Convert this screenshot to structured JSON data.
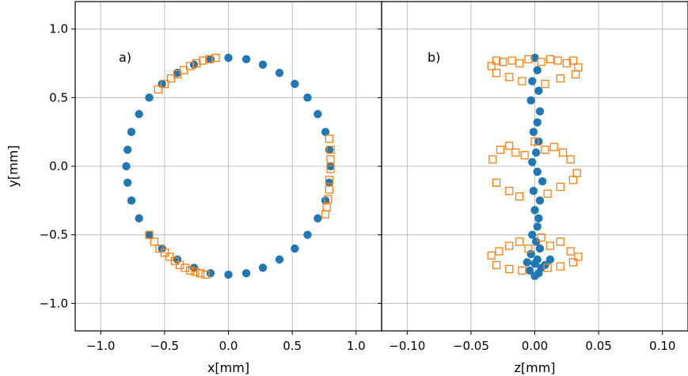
{
  "chart_data": [
    {
      "type": "scatter",
      "panel_label": "a)",
      "xlabel": "x[mm]",
      "ylabel": "y[mm]",
      "xlim": [
        -1.2,
        1.2
      ],
      "ylim": [
        -1.2,
        1.2
      ],
      "xticks": [
        "−1.0",
        "−0.5",
        "0.0",
        "0.5",
        "1.0"
      ],
      "xtick_values": [
        -1.0,
        -0.5,
        0.0,
        0.5,
        1.0
      ],
      "yticks": [
        "−1.0",
        "−0.5",
        "0.0",
        "0.5",
        "1.0"
      ],
      "ytick_values": [
        -1.0,
        -0.5,
        0.0,
        0.5,
        1.0
      ],
      "grid": true,
      "series": [
        {
          "marker": "filled-circle",
          "color": "#1f77b4",
          "shape": "ellipse",
          "x_semi_axis": 0.8,
          "y_semi_axis": 0.79,
          "x": [
            0.0,
            0.14,
            0.27,
            0.4,
            0.52,
            0.62,
            0.7,
            0.76,
            0.79,
            0.8,
            0.79,
            0.76,
            0.7,
            0.62,
            0.52,
            0.4,
            0.27,
            0.14,
            0.0,
            -0.14,
            -0.27,
            -0.4,
            -0.52,
            -0.62,
            -0.7,
            -0.76,
            -0.79,
            -0.8,
            -0.79,
            -0.76,
            -0.7,
            -0.62,
            -0.52,
            -0.4,
            -0.27,
            -0.14
          ],
          "y": [
            0.79,
            0.78,
            0.74,
            0.68,
            0.6,
            0.5,
            0.38,
            0.25,
            0.12,
            0.0,
            -0.12,
            -0.25,
            -0.38,
            -0.5,
            -0.6,
            -0.68,
            -0.74,
            -0.78,
            -0.79,
            -0.78,
            -0.74,
            -0.68,
            -0.6,
            -0.5,
            -0.38,
            -0.25,
            -0.12,
            0.0,
            0.12,
            0.25,
            0.38,
            0.5,
            0.6,
            0.68,
            0.74,
            0.78
          ]
        },
        {
          "marker": "open-square",
          "color": "#ff7f0e",
          "x": [
            -0.1,
            -0.15,
            -0.2,
            -0.25,
            -0.3,
            -0.35,
            -0.4,
            -0.45,
            -0.5,
            -0.55,
            0.79,
            0.8,
            0.8,
            0.8,
            0.79,
            0.79,
            0.78,
            0.77,
            0.76,
            -0.62,
            -0.58,
            -0.54,
            -0.5,
            -0.46,
            -0.42,
            -0.38,
            -0.34,
            -0.3,
            -0.26,
            -0.22,
            -0.18
          ],
          "y": [
            0.79,
            0.78,
            0.77,
            0.75,
            0.73,
            0.7,
            0.67,
            0.64,
            0.6,
            0.56,
            0.2,
            0.12,
            0.05,
            -0.02,
            -0.1,
            -0.17,
            -0.24,
            -0.3,
            -0.35,
            -0.5,
            -0.55,
            -0.6,
            -0.63,
            -0.66,
            -0.69,
            -0.72,
            -0.74,
            -0.76,
            -0.77,
            -0.78,
            -0.79
          ]
        }
      ]
    },
    {
      "type": "scatter",
      "panel_label": "b)",
      "xlabel": "z[mm]",
      "xlim": [
        -0.12,
        0.12
      ],
      "ylim": [
        -1.2,
        1.2
      ],
      "xticks": [
        "−0.10",
        "−0.05",
        "0.00",
        "0.05",
        "0.10"
      ],
      "xtick_values": [
        -0.1,
        -0.05,
        0.0,
        0.05,
        0.1
      ],
      "grid": true,
      "series": [
        {
          "marker": "filled-circle",
          "color": "#1f77b4",
          "x": [
            0.0,
            0.002,
            -0.002,
            0.003,
            -0.003,
            0.004,
            0.002,
            -0.001,
            0.003,
            0.001,
            -0.002,
            0.002,
            0.006,
            -0.001,
            0.004,
            0.0,
            0.003,
            0.002,
            -0.002,
            0.001,
            0.004,
            -0.003,
            0.002,
            0.0,
            0.005,
            -0.004,
            0.008,
            0.012,
            -0.006,
            0.003,
            0.0
          ],
          "y": [
            0.79,
            0.7,
            0.62,
            0.55,
            0.48,
            0.4,
            0.32,
            0.25,
            0.18,
            0.1,
            0.03,
            -0.04,
            -0.11,
            -0.18,
            -0.25,
            -0.32,
            -0.38,
            -0.44,
            -0.5,
            -0.55,
            -0.6,
            -0.64,
            -0.68,
            -0.71,
            -0.74,
            -0.76,
            -0.72,
            -0.68,
            -0.7,
            -0.78,
            -0.8
          ]
        },
        {
          "marker": "open-square",
          "color": "#ff7f0e",
          "x": [
            -0.034,
            -0.03,
            -0.025,
            -0.018,
            -0.012,
            -0.005,
            0.005,
            0.012,
            0.018,
            0.025,
            0.03,
            0.034,
            -0.03,
            -0.02,
            -0.01,
            0.008,
            0.02,
            0.032,
            -0.033,
            -0.027,
            -0.02,
            -0.015,
            -0.008,
            0.0,
            0.008,
            0.015,
            0.022,
            0.028,
            0.033,
            -0.03,
            -0.02,
            -0.012,
            0.01,
            0.02,
            0.03,
            -0.034,
            -0.028,
            -0.02,
            -0.012,
            -0.005,
            0.005,
            0.012,
            0.02,
            0.028,
            0.034,
            -0.03,
            -0.02,
            -0.01,
            0.01,
            0.02,
            0.03
          ],
          "y": [
            0.73,
            0.77,
            0.76,
            0.77,
            0.75,
            0.78,
            0.76,
            0.78,
            0.77,
            0.75,
            0.77,
            0.72,
            0.68,
            0.65,
            0.62,
            0.6,
            0.64,
            0.67,
            0.05,
            0.12,
            0.15,
            0.1,
            0.08,
            0.18,
            0.12,
            0.14,
            0.1,
            0.05,
            -0.05,
            -0.12,
            -0.18,
            -0.22,
            -0.2,
            -0.15,
            -0.1,
            -0.65,
            -0.62,
            -0.58,
            -0.55,
            -0.6,
            -0.52,
            -0.58,
            -0.55,
            -0.62,
            -0.66,
            -0.72,
            -0.75,
            -0.76,
            -0.74,
            -0.73,
            -0.7
          ]
        }
      ]
    }
  ]
}
